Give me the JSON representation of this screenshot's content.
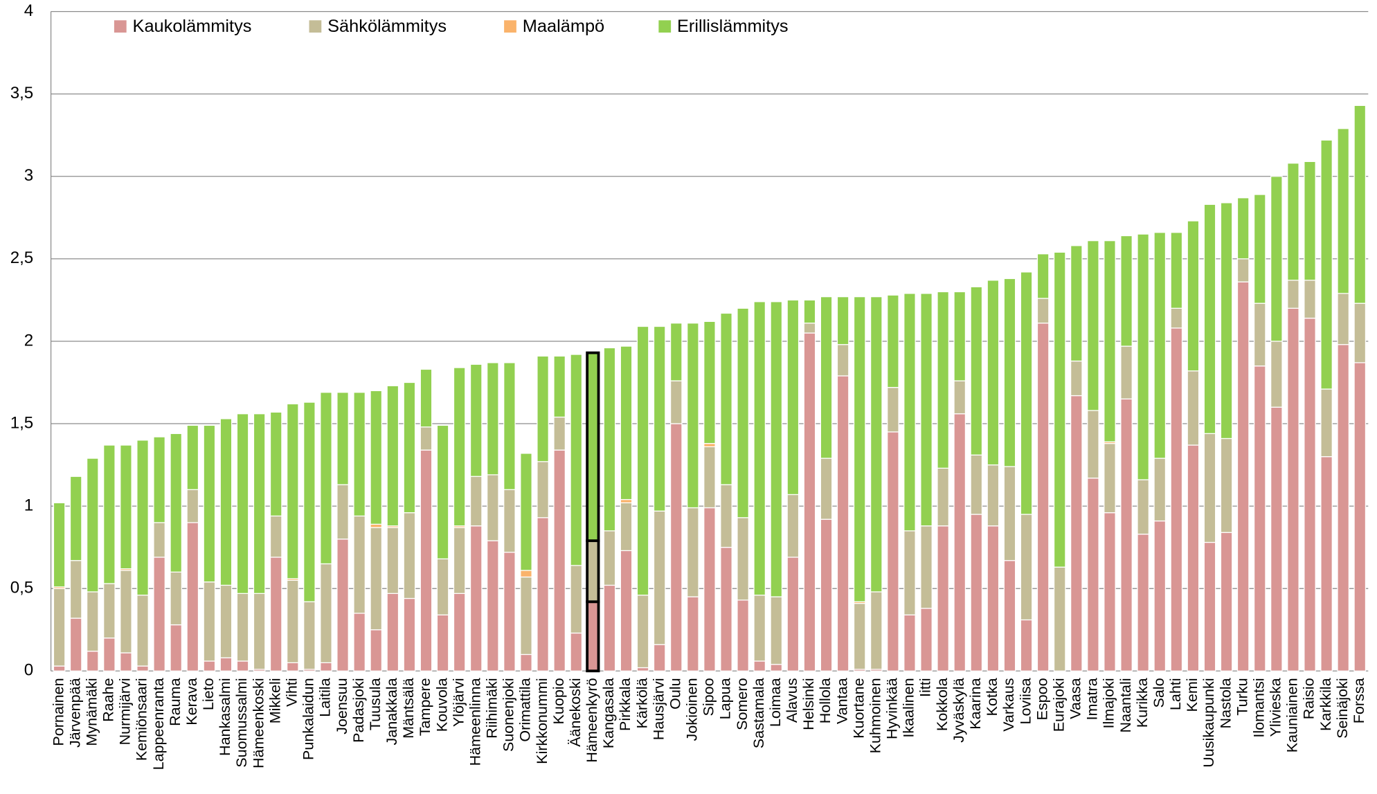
{
  "chart_data": {
    "type": "stacked-bar",
    "categories": [
      "Pornainen",
      "Järvenpää",
      "Mynämäki",
      "Raahe",
      "Nurmijärvi",
      "Kemiönsaari",
      "Lappeenranta",
      "Rauma",
      "Kerava",
      "Lieto",
      "Hankasalmi",
      "Suomussalmi",
      "Hämeenkoski",
      "Mikkeli",
      "Vihti",
      "Punkalaidun",
      "Laitila",
      "Joensuu",
      "Padasjoki",
      "Tuusula",
      "Janakkala",
      "Mäntsälä",
      "Tampere",
      "Kouvola",
      "Ylöjärvi",
      "Hämeenlinna",
      "Riihimäki",
      "Suonenjoki",
      "Orimattila",
      "Kirkkonummi",
      "Kuopio",
      "Äänekoski",
      "Hämeenkyrö",
      "Kangasala",
      "Pirkkala",
      "Kärkölä",
      "Hausjärvi",
      "Oulu",
      "Jokioinen",
      "Sipoo",
      "Lapua",
      "Somero",
      "Sastamala",
      "Loimaa",
      "Alavus",
      "Helsinki",
      "Hollola",
      "Vantaa",
      "Kuortane",
      "Kuhmoinen",
      "Hyvinkää",
      "Ikaalinen",
      "Iitti",
      "Kokkola",
      "Jyväskylä",
      "Kaarina",
      "Kotka",
      "Varkaus",
      "Loviisa",
      "Espoo",
      "Eurajoki",
      "Vaasa",
      "Imatra",
      "Ilmajoki",
      "Naantali",
      "Kurikka",
      "Salo",
      "Lahti",
      "Kemi",
      "Uusikaupunki",
      "Nastola",
      "Turku",
      "Ilomantsi",
      "Ylivieska",
      "Kauniainen",
      "Raisio",
      "Karkkila",
      "Seinäjoki",
      "Forssa"
    ],
    "series": [
      {
        "name": "Kaukolämmitys",
        "color": "#d99694",
        "values": [
          0.03,
          0.32,
          0.12,
          0.2,
          0.11,
          0.03,
          0.69,
          0.28,
          0.9,
          0.06,
          0.08,
          0.06,
          0.01,
          0.69,
          0.05,
          0.01,
          0.05,
          0.8,
          0.35,
          0.25,
          0.47,
          0.44,
          1.34,
          0.34,
          0.47,
          0.88,
          0.79,
          0.72,
          0.1,
          0.93,
          1.34,
          0.23,
          0.42,
          0.52,
          0.73,
          0.02,
          0.16,
          1.5,
          0.45,
          0.99,
          0.75,
          0.43,
          0.06,
          0.04,
          0.69,
          2.05,
          0.92,
          1.79,
          0.01,
          0.01,
          1.45,
          0.34,
          0.38,
          0.88,
          1.56,
          0.95,
          0.88,
          0.67,
          0.31,
          2.11,
          0,
          1.67,
          1.17,
          0.96,
          1.65,
          0.83,
          0.91,
          2.08,
          1.37,
          0.78,
          0.84,
          2.36,
          1.85,
          1.6,
          2.2,
          2.14,
          1.3,
          1.98,
          1.87
        ]
      },
      {
        "name": "Sähkölämmitys",
        "color": "#c4bd97",
        "values": [
          0.47,
          0.35,
          0.36,
          0.33,
          0.5,
          0.43,
          0.21,
          0.32,
          0.2,
          0.48,
          0.44,
          0.41,
          0.46,
          0.25,
          0.5,
          0.41,
          0.6,
          0.33,
          0.59,
          0.62,
          0.4,
          0.52,
          0.14,
          0.34,
          0.4,
          0.3,
          0.4,
          0.38,
          0.47,
          0.34,
          0.2,
          0.41,
          0.37,
          0.33,
          0.29,
          0.44,
          0.81,
          0.26,
          0.54,
          0.37,
          0.38,
          0.5,
          0.4,
          0.41,
          0.38,
          0.06,
          0.37,
          0.19,
          0.4,
          0.47,
          0.27,
          0.51,
          0.5,
          0.35,
          0.2,
          0.36,
          0.37,
          0.57,
          0.64,
          0.15,
          0.63,
          0.21,
          0.41,
          0.42,
          0.32,
          0.33,
          0.38,
          0.12,
          0.45,
          0.66,
          0.57,
          0.14,
          0.38,
          0.4,
          0.17,
          0.23,
          0.41,
          0.31,
          0.36
        ]
      },
      {
        "name": "Maalämpö",
        "color": "#fab36b",
        "values": [
          0.01,
          0,
          0,
          0,
          0.01,
          0,
          0,
          0,
          0,
          0,
          0,
          0,
          0,
          0,
          0.01,
          0,
          0,
          0,
          0,
          0.02,
          0.01,
          0,
          0,
          0,
          0.01,
          0,
          0,
          0,
          0.04,
          0,
          0,
          0,
          0,
          0,
          0.02,
          0,
          0,
          0,
          0,
          0.02,
          0,
          0,
          0,
          0,
          0,
          0,
          0,
          0,
          0.01,
          0,
          0,
          0,
          0,
          0,
          0,
          0,
          0,
          0,
          0,
          0,
          0,
          0,
          0,
          0.01,
          0,
          0,
          0,
          0,
          0,
          0,
          0,
          0,
          0,
          0,
          0,
          0,
          0,
          0,
          0
        ]
      },
      {
        "name": "Erillislämmitys",
        "color": "#92d050",
        "values": [
          0.51,
          0.51,
          0.81,
          0.84,
          0.75,
          0.94,
          0.52,
          0.84,
          0.39,
          0.95,
          1.01,
          1.09,
          1.09,
          0.63,
          1.06,
          1.21,
          1.04,
          0.56,
          0.75,
          0.81,
          0.85,
          0.79,
          0.35,
          0.81,
          0.96,
          0.68,
          0.68,
          0.77,
          0.71,
          0.64,
          0.37,
          1.28,
          1.14,
          1.11,
          0.93,
          1.63,
          1.12,
          0.35,
          1.12,
          0.74,
          1.04,
          1.27,
          1.78,
          1.79,
          1.18,
          0.14,
          0.98,
          0.29,
          1.85,
          1.79,
          0.56,
          1.44,
          1.41,
          1.07,
          0.54,
          1.02,
          1.12,
          1.14,
          1.47,
          0.27,
          1.91,
          0.7,
          1.03,
          1.22,
          0.67,
          1.49,
          1.37,
          0.46,
          0.91,
          1.39,
          1.43,
          0.37,
          0.66,
          1.0,
          0.71,
          0.72,
          1.51,
          1.0,
          1.2
        ]
      }
    ],
    "ylim": [
      0,
      4
    ],
    "yticks": [
      0,
      {
        "value": 0.5,
        "label": "0,5"
      },
      1,
      {
        "value": 1.5,
        "label": "1,5"
      },
      2,
      {
        "value": 2.5,
        "label": "2,5"
      },
      3,
      {
        "value": 3.5,
        "label": "3,5"
      },
      4
    ],
    "grid": true,
    "legend": "top",
    "highlight_index": 32
  }
}
